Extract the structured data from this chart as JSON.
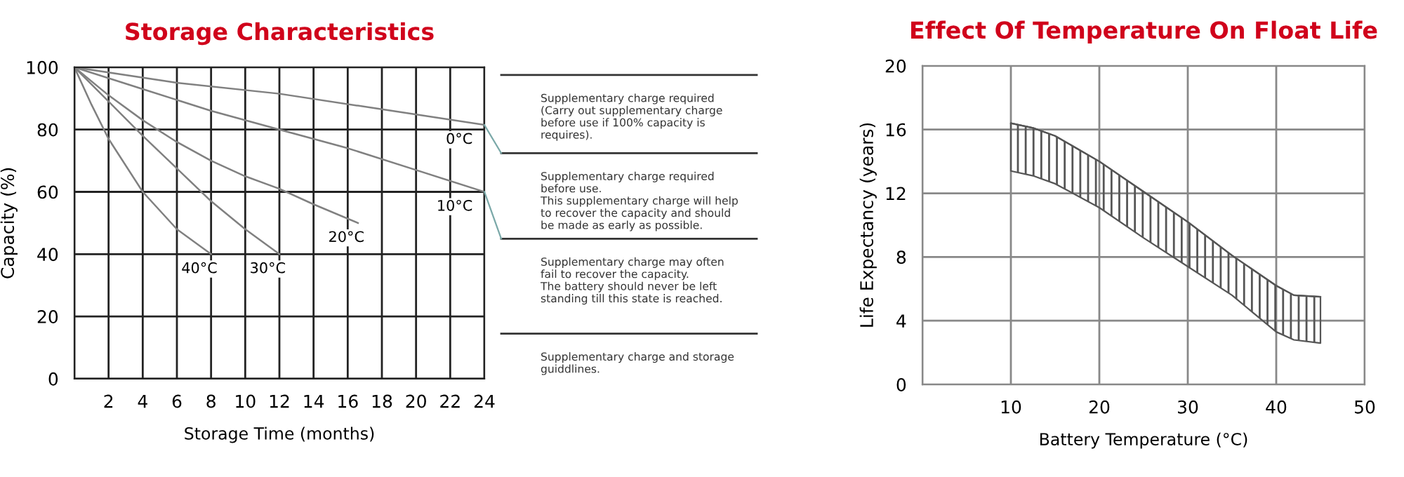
{
  "chart_data": [
    {
      "type": "line",
      "title": "Storage Characteristics",
      "xlabel": "Storage Time (months)",
      "ylabel": "Capacity (%)",
      "xlim": [
        0,
        24
      ],
      "xticks": [
        {
          "value": 0,
          "label": null
        },
        2,
        4,
        6,
        8,
        10,
        12,
        14,
        16,
        18,
        20,
        22,
        24
      ],
      "ylim": [
        0,
        100
      ],
      "yticks": [
        0,
        20,
        40,
        60,
        80,
        100
      ],
      "grid": true,
      "legend": false,
      "marker": "none",
      "line_style": "solid",
      "series": [
        {
          "name": "0°C",
          "color": "#808080",
          "x": [
            0,
            6,
            12,
            18,
            24
          ],
          "values": [
            100,
            95,
            91.5,
            86.5,
            81.5
          ]
        },
        {
          "name": "10°C",
          "color": "#808080",
          "x": [
            0,
            4,
            8,
            12,
            16,
            20,
            24
          ],
          "values": [
            100,
            93,
            86,
            80,
            74,
            67,
            60
          ]
        },
        {
          "name": "20°C",
          "color": "#808080",
          "x": [
            0,
            2,
            4,
            6,
            8,
            10,
            12,
            14,
            16.6
          ],
          "values": [
            100,
            91,
            83,
            76,
            70,
            65,
            61,
            56,
            50
          ]
        },
        {
          "name": "30°C",
          "color": "#808080",
          "x": [
            0,
            2,
            4,
            6,
            8,
            10,
            12
          ],
          "values": [
            100,
            89,
            78,
            67.5,
            57,
            48,
            40
          ]
        },
        {
          "name": "40°C",
          "color": "#808080",
          "x": [
            0,
            1,
            2,
            4,
            6,
            8
          ],
          "values": [
            100,
            88,
            77,
            60,
            48,
            40
          ]
        }
      ]
    },
    {
      "type": "other",
      "annotations": [
        "Supplementary charge required\n(Carry out supplementary charge\nbefore use if 100% capacity is\nrequires).",
        "Supplementary charge required\nbefore use.\nThis supplementary charge will help\nto recover the capacity and should\nbe made as early as possible.",
        "Supplementary charge may often\nfail to recover the capacity.\nThe battery should never be left\nstanding till this state is reached.",
        "Supplementary charge and storage\nguiddlines."
      ]
    },
    {
      "type": "line",
      "title": "Effect Of Temperature On Float Life",
      "xlabel": "Battery Temperature (°C)",
      "ylabel": "Life Expectancy (years)",
      "xlim": [
        0,
        50
      ],
      "xticks": [
        {
          "value": 0,
          "label": null
        },
        10,
        20,
        30,
        40,
        50
      ],
      "ylim": [
        0,
        20
      ],
      "yticks": [
        0,
        4,
        8,
        12,
        16,
        20
      ],
      "grid": true,
      "series": [
        {
          "color": "#555555",
          "x": [
            10,
            12.5,
            15,
            20,
            25,
            30,
            35,
            40,
            42,
            45
          ],
          "type": "line",
          "values": [
            16.4,
            16.1,
            15.6,
            14.0,
            12.1,
            10.2,
            8.1,
            6.2,
            5.6,
            5.5
          ],
          "upper": [
            16.4,
            16.1,
            15.6,
            14.0,
            12.1,
            10.2,
            8.1,
            6.2,
            5.6,
            5.5
          ],
          "lower": [
            13.4,
            13.1,
            12.6,
            11.1,
            9.2,
            7.4,
            5.6,
            3.3,
            2.8,
            2.6
          ]
        }
      ]
    }
  ]
}
